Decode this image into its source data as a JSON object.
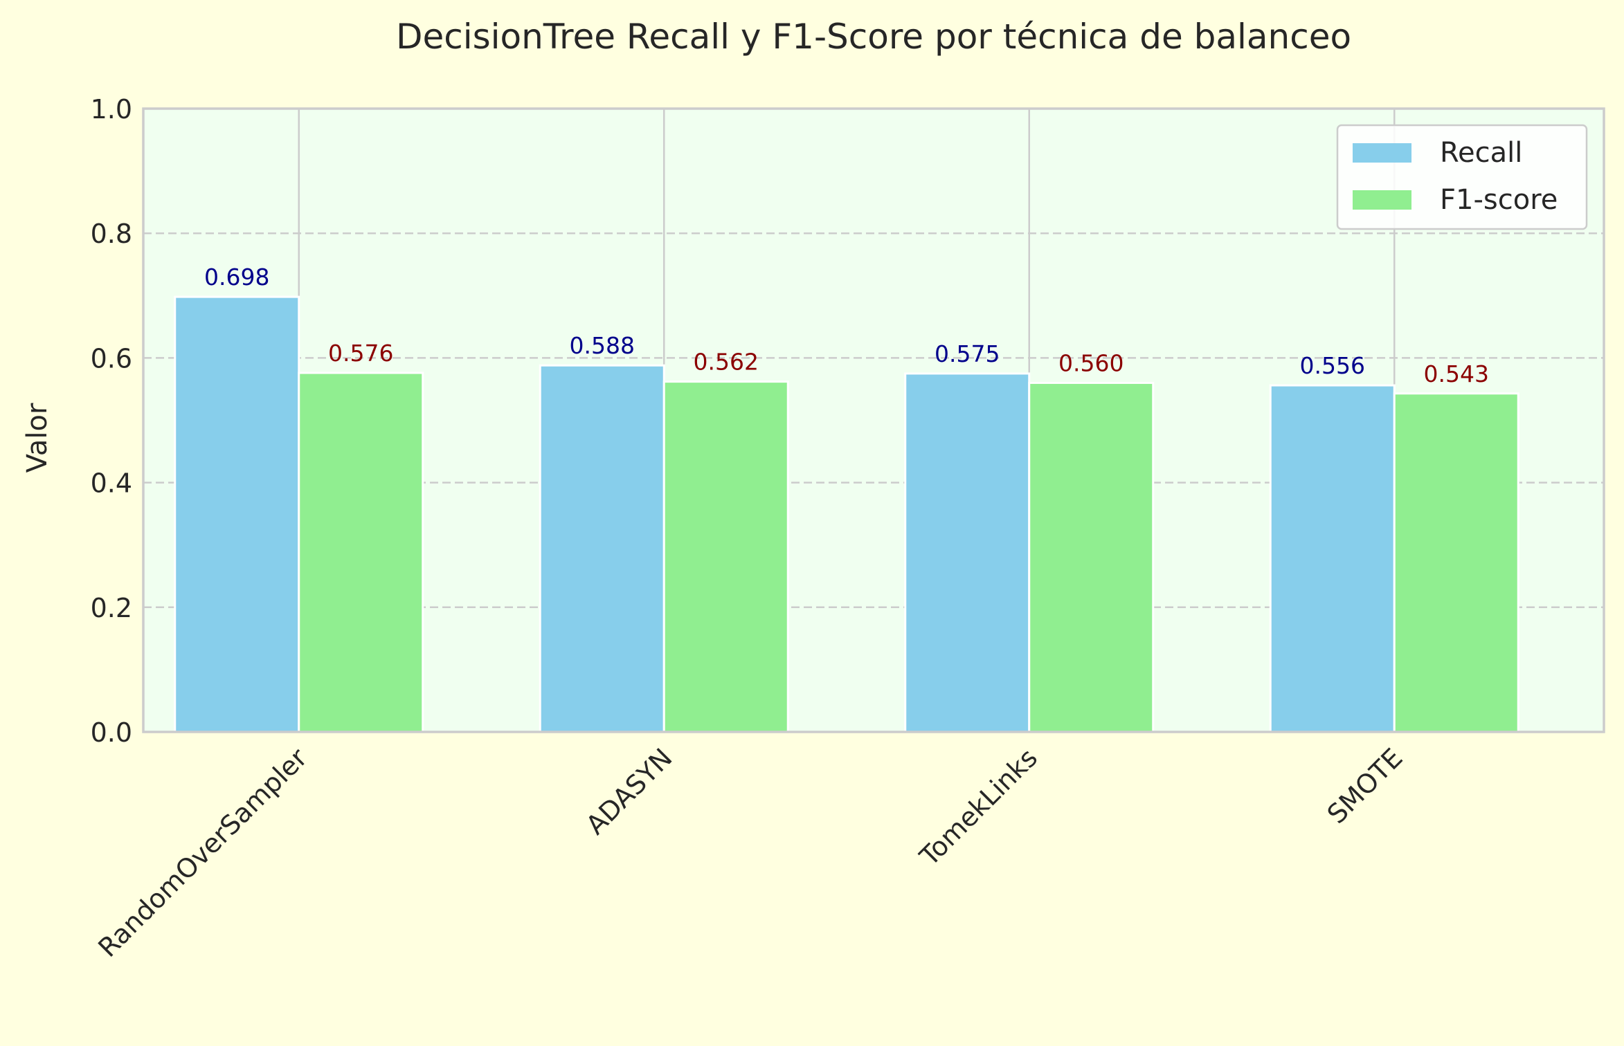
{
  "chart_data": {
    "type": "bar",
    "title": "DecisionTree Recall y F1-Score por técnica de balanceo",
    "xlabel": "",
    "ylabel": "Valor",
    "categories": [
      "RandomOverSampler",
      "ADASYN",
      "TomekLinks",
      "SMOTE"
    ],
    "series": [
      {
        "name": "Recall",
        "values": [
          0.698,
          0.588,
          0.575,
          0.556
        ],
        "labels": [
          "0.698",
          "0.588",
          "0.575",
          "0.556"
        ],
        "color": "#87ceeb",
        "label_color": "#00008b"
      },
      {
        "name": "F1-score",
        "values": [
          0.576,
          0.562,
          0.56,
          0.543
        ],
        "labels": [
          "0.576",
          "0.562",
          "0.560",
          "0.543"
        ],
        "color": "#90ee90",
        "label_color": "#8b0000"
      }
    ],
    "ylim": [
      0,
      1.0
    ],
    "yticks": [
      "0.0",
      "0.2",
      "0.4",
      "0.6",
      "0.8",
      "1.0"
    ],
    "grid": "y-dashed",
    "legend_position": "top-right",
    "plot_background": "#f0fff0",
    "page_background": "#ffffe0"
  }
}
